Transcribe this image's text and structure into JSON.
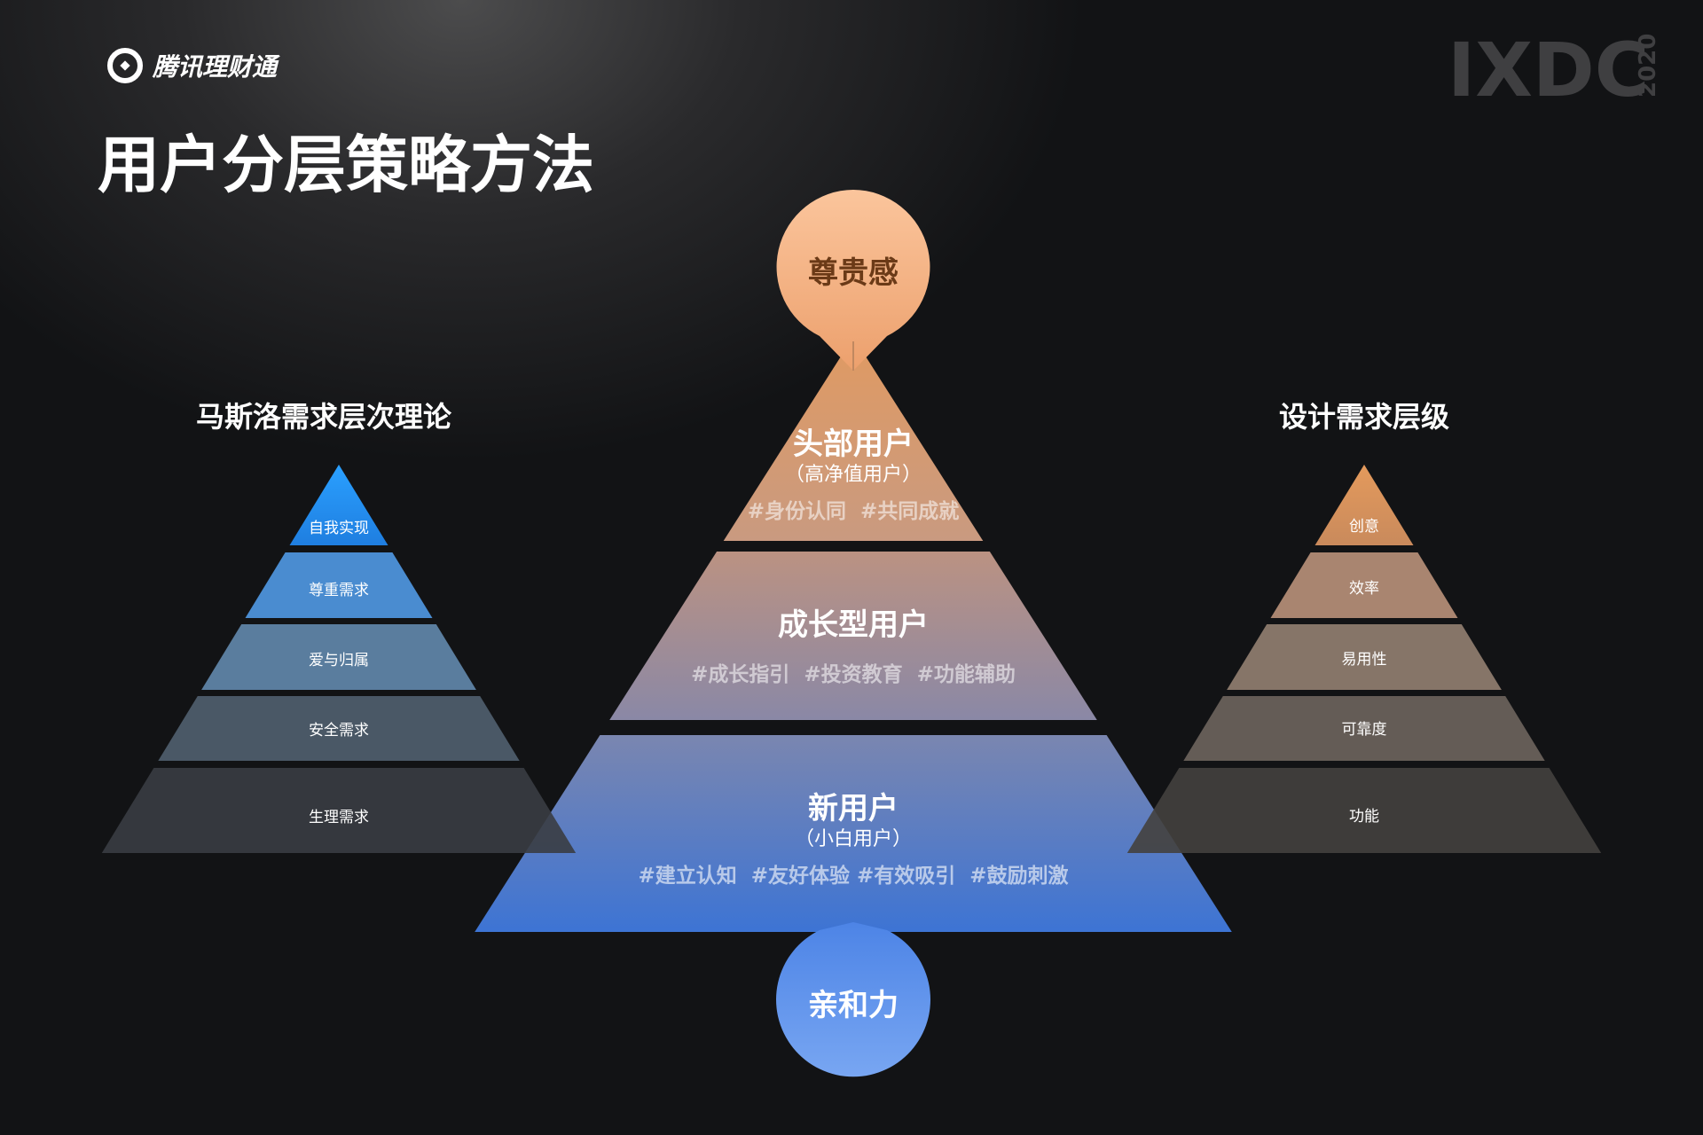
{
  "brand": {
    "logo_text": "腾讯理财通",
    "event_logo": "IXDC",
    "event_year": "2020"
  },
  "page_title": "用户分层策略方法",
  "left_pyramid": {
    "heading": "马斯洛需求层次理论",
    "tiers": [
      "自我实现",
      "尊重需求",
      "爱与归属",
      "安全需求",
      "生理需求"
    ]
  },
  "right_pyramid": {
    "heading": "设计需求层级",
    "tiers": [
      "创意",
      "效率",
      "易用性",
      "可靠度",
      "功能"
    ]
  },
  "center_pyramid": {
    "top_badge": "尊贵感",
    "bottom_badge": "亲和力",
    "tiers": [
      {
        "title": "头部用户",
        "subtitle": "（高净值用户）",
        "tags": "#身份认同  #共同成就"
      },
      {
        "title": "成长型用户",
        "tags": "#成长指引  #投资教育  #功能辅助"
      },
      {
        "title": "新用户",
        "subtitle": "（小白用户）",
        "tags": "#建立认知  #友好体验 #有效吸引  #鼓励刺激"
      }
    ]
  },
  "colors": {
    "background": "#111214",
    "accent_orange": "#f6bd93",
    "accent_blue": "#5c93ec"
  }
}
